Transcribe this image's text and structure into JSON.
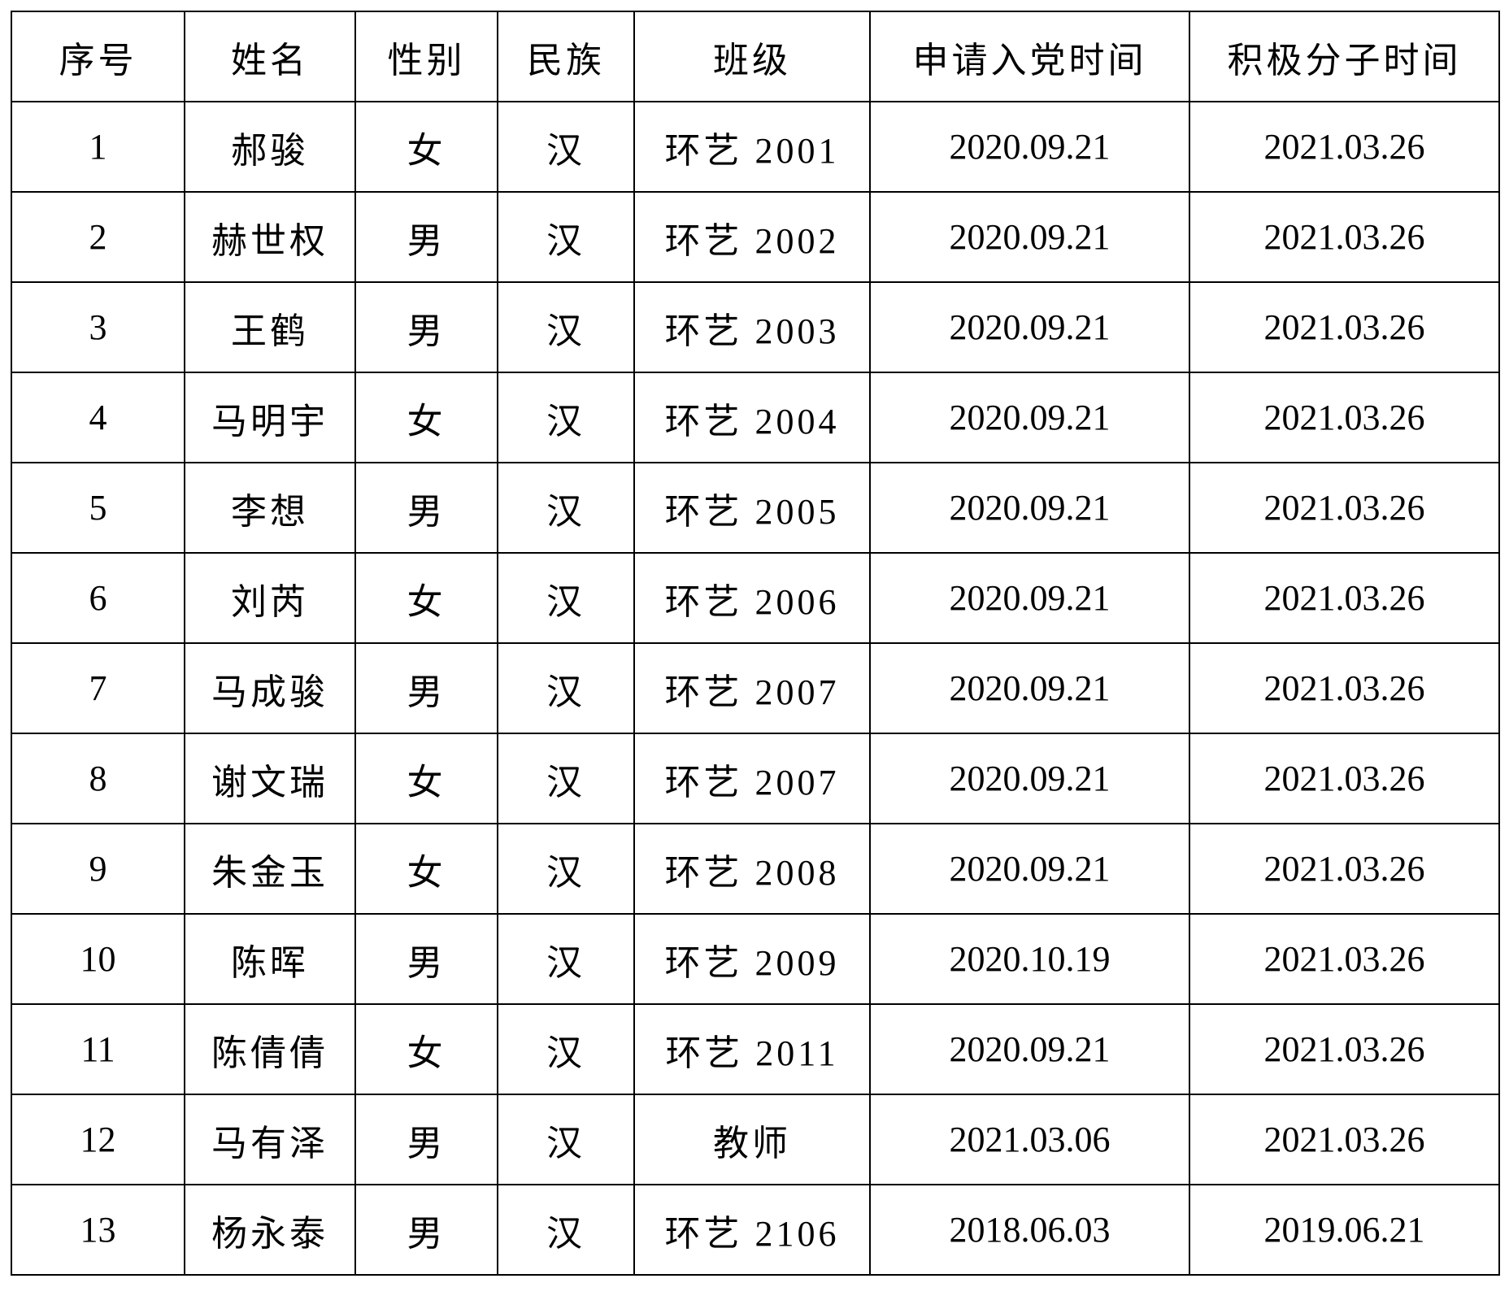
{
  "table": {
    "headers": [
      "序号",
      "姓名",
      "性别",
      "民族",
      "班级",
      "申请入党时间",
      "积极分子时间"
    ],
    "rows": [
      [
        "1",
        "郝骏",
        "女",
        "汉",
        "环艺 2001",
        "2020.09.21",
        "2021.03.26"
      ],
      [
        "2",
        "赫世权",
        "男",
        "汉",
        "环艺 2002",
        "2020.09.21",
        "2021.03.26"
      ],
      [
        "3",
        "王鹤",
        "男",
        "汉",
        "环艺 2003",
        "2020.09.21",
        "2021.03.26"
      ],
      [
        "4",
        "马明宇",
        "女",
        "汉",
        "环艺 2004",
        "2020.09.21",
        "2021.03.26"
      ],
      [
        "5",
        "李想",
        "男",
        "汉",
        "环艺 2005",
        "2020.09.21",
        "2021.03.26"
      ],
      [
        "6",
        "刘芮",
        "女",
        "汉",
        "环艺 2006",
        "2020.09.21",
        "2021.03.26"
      ],
      [
        "7",
        "马成骏",
        "男",
        "汉",
        "环艺 2007",
        "2020.09.21",
        "2021.03.26"
      ],
      [
        "8",
        "谢文瑞",
        "女",
        "汉",
        "环艺 2007",
        "2020.09.21",
        "2021.03.26"
      ],
      [
        "9",
        "朱金玉",
        "女",
        "汉",
        "环艺 2008",
        "2020.09.21",
        "2021.03.26"
      ],
      [
        "10",
        "陈晖",
        "男",
        "汉",
        "环艺 2009",
        "2020.10.19",
        "2021.03.26"
      ],
      [
        "11",
        "陈倩倩",
        "女",
        "汉",
        "环艺 2011",
        "2020.09.21",
        "2021.03.26"
      ],
      [
        "12",
        "马有泽",
        "男",
        "汉",
        "教师",
        "2021.03.06",
        "2021.03.26"
      ],
      [
        "13",
        "杨永泰",
        "男",
        "汉",
        "环艺 2106",
        "2018.06.03",
        "2019.06.21"
      ]
    ]
  }
}
